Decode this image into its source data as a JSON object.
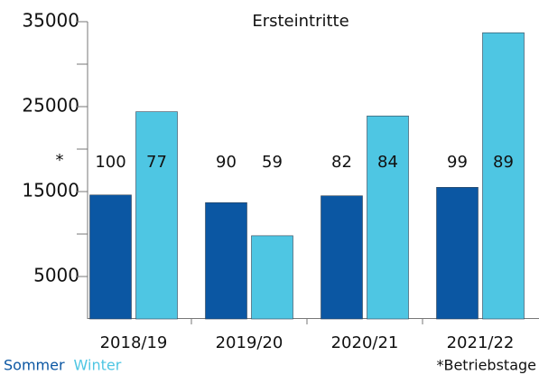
{
  "chart_data": {
    "type": "bar",
    "title": "Ersteintritte",
    "categories": [
      "2018/19",
      "2019/20",
      "2020/21",
      "2021/22"
    ],
    "series": [
      {
        "name": "Sommer",
        "color": "#0b57a3",
        "values": [
          14600,
          13700,
          14500,
          15500
        ],
        "days": [
          100,
          90,
          82,
          99
        ]
      },
      {
        "name": "Winter",
        "color": "#4ec6e3",
        "values": [
          24400,
          9800,
          23900,
          33700
        ],
        "days": [
          77,
          59,
          84,
          89
        ]
      }
    ],
    "days_marker": "*",
    "footnote": "*Betriebstage",
    "ylim": [
      0,
      35000
    ],
    "yticks": [
      5000,
      15000,
      25000,
      35000
    ],
    "yminor_ticks": [
      10000,
      20000,
      30000
    ],
    "legend": "bottom-left"
  }
}
